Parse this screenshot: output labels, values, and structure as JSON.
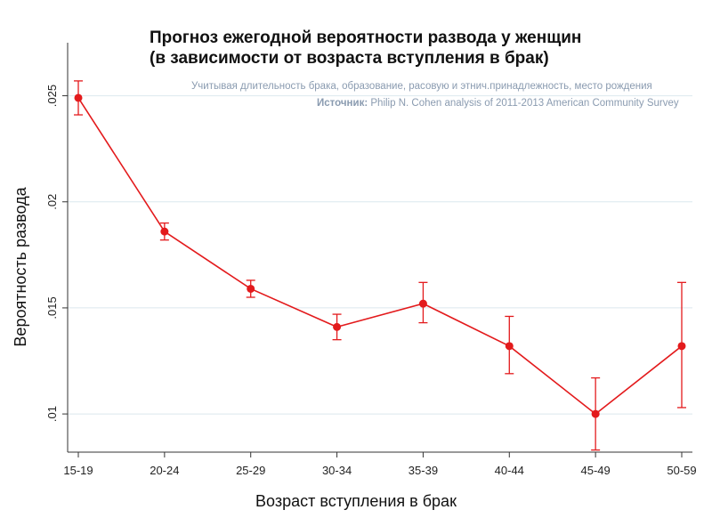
{
  "chart_data": {
    "type": "line",
    "title_lines": [
      "Прогноз ежегодной вероятности развода у женщин",
      "(в зависимости от возраста вступления в брак)"
    ],
    "note": "Учитывая длительность брака, образование, расовую и этнич.принадлежность, место рождения",
    "source_label": "Источник:",
    "source_text": "Philip N. Cohen analysis of 2011-2013 American Community Survey",
    "xlabel": "Возраст вступления в брак",
    "ylabel": "Вероятность развода",
    "categories": [
      "15-19",
      "20-24",
      "25-29",
      "30-34",
      "35-39",
      "40-44",
      "45-49",
      "50-59"
    ],
    "y_ticks": [
      ".01",
      ".015",
      ".02",
      ".025"
    ],
    "y_tick_values": [
      0.01,
      0.015,
      0.02,
      0.025
    ],
    "ylim": [
      0.0082,
      0.0275
    ],
    "grid": true,
    "series": [
      {
        "values": [
          0.0249,
          0.0186,
          0.0159,
          0.0141,
          0.0152,
          0.0132,
          0.01,
          0.0132
        ],
        "ci_low": [
          0.0241,
          0.0182,
          0.0155,
          0.0135,
          0.0143,
          0.0119,
          0.0083,
          0.0103
        ],
        "ci_high": [
          0.0257,
          0.019,
          0.0163,
          0.0147,
          0.0162,
          0.0146,
          0.0117,
          0.0162
        ]
      }
    ],
    "colors": {
      "line": "#e31a1c",
      "grid": "#dce8ee",
      "axis": "#333333"
    }
  }
}
